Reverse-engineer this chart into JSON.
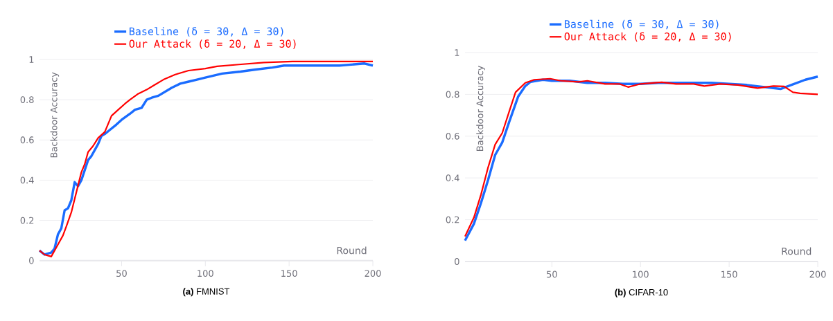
{
  "chart_data": [
    {
      "type": "line",
      "title": "**(a)** FMNIST",
      "xlabel": "Round",
      "ylabel": "Backdoor Accuracy",
      "xlim": [
        1,
        200
      ],
      "xticks": [
        50,
        100,
        150,
        200
      ],
      "ylim": [
        0,
        1
      ],
      "yticks": [
        0,
        0.2,
        0.4,
        0.6,
        0.8,
        1
      ],
      "grid": "y",
      "legend": "top",
      "line_style": "solid",
      "series": [
        {
          "name": "Baseline (δ = 30, Δ = 30)",
          "color": "#1a6cff",
          "x": [
            1,
            4,
            8,
            10,
            12,
            14,
            16,
            18,
            20,
            22,
            24,
            26,
            28,
            30,
            32,
            34,
            36,
            38,
            40,
            43,
            46,
            50,
            55,
            58,
            62,
            65,
            68,
            72,
            76,
            80,
            85,
            90,
            95,
            100,
            110,
            121,
            130,
            140,
            147,
            160,
            180,
            195,
            200
          ],
          "values": [
            0.05,
            0.03,
            0.04,
            0.06,
            0.13,
            0.16,
            0.25,
            0.26,
            0.3,
            0.39,
            0.37,
            0.4,
            0.45,
            0.5,
            0.52,
            0.55,
            0.58,
            0.62,
            0.63,
            0.65,
            0.67,
            0.7,
            0.73,
            0.75,
            0.76,
            0.8,
            0.81,
            0.82,
            0.84,
            0.86,
            0.88,
            0.89,
            0.9,
            0.91,
            0.93,
            0.94,
            0.95,
            0.96,
            0.97,
            0.97,
            0.97,
            0.98,
            0.97
          ]
        },
        {
          "name": "Our Attack (δ = 20, Δ = 30)",
          "color": "#ff0000",
          "x": [
            1,
            4,
            8,
            12,
            15,
            17,
            20,
            23,
            26,
            28,
            30,
            33,
            36,
            40,
            44,
            48,
            52,
            55,
            60,
            65,
            69,
            75,
            82,
            90,
            100,
            107,
            120,
            135,
            152,
            175,
            200
          ],
          "values": [
            0.05,
            0.03,
            0.02,
            0.08,
            0.125,
            0.17,
            0.24,
            0.34,
            0.44,
            0.48,
            0.54,
            0.57,
            0.61,
            0.64,
            0.72,
            0.75,
            0.78,
            0.8,
            0.83,
            0.85,
            0.87,
            0.9,
            0.925,
            0.945,
            0.955,
            0.966,
            0.975,
            0.985,
            0.99,
            0.99,
            0.99
          ]
        }
      ]
    },
    {
      "type": "line",
      "title": "**(b)** CIFAR-10",
      "xlabel": "Round",
      "ylabel": "Backdoor Accuracy",
      "xlim": [
        1,
        200
      ],
      "xticks": [
        50,
        100,
        150,
        200
      ],
      "ylim": [
        0,
        1
      ],
      "yticks": [
        0,
        0.2,
        0.4,
        0.6,
        0.8,
        1
      ],
      "grid": "y",
      "legend": "top",
      "line_style": "solid",
      "series": [
        {
          "name": "Baseline (δ = 30, Δ = 30)",
          "color": "#1a6cff",
          "x": [
            1,
            6,
            10,
            14,
            18,
            22,
            26,
            31,
            35,
            38,
            45,
            50,
            60,
            70,
            80,
            90,
            100,
            110,
            120,
            130,
            140,
            150,
            160,
            170,
            179,
            185,
            193,
            200
          ],
          "values": [
            0.1,
            0.18,
            0.28,
            0.39,
            0.51,
            0.57,
            0.67,
            0.79,
            0.84,
            0.86,
            0.87,
            0.865,
            0.865,
            0.855,
            0.855,
            0.85,
            0.85,
            0.855,
            0.855,
            0.855,
            0.855,
            0.85,
            0.845,
            0.835,
            0.826,
            0.845,
            0.87,
            0.885
          ]
        },
        {
          "name": "Our Attack (δ = 20, Δ = 30)",
          "color": "#ff0000",
          "x": [
            1,
            6,
            10,
            14,
            18,
            22,
            26,
            29.5,
            35,
            40,
            49,
            55,
            65,
            70,
            80,
            88,
            93,
            100,
            112,
            120,
            130,
            136,
            145,
            155,
            166,
            175,
            181,
            186,
            190,
            200
          ],
          "values": [
            0.12,
            0.21,
            0.32,
            0.45,
            0.56,
            0.615,
            0.72,
            0.81,
            0.855,
            0.87,
            0.875,
            0.865,
            0.86,
            0.865,
            0.85,
            0.85,
            0.835,
            0.85,
            0.858,
            0.85,
            0.85,
            0.84,
            0.85,
            0.845,
            0.83,
            0.84,
            0.838,
            0.81,
            0.805,
            0.8
          ]
        }
      ]
    }
  ]
}
